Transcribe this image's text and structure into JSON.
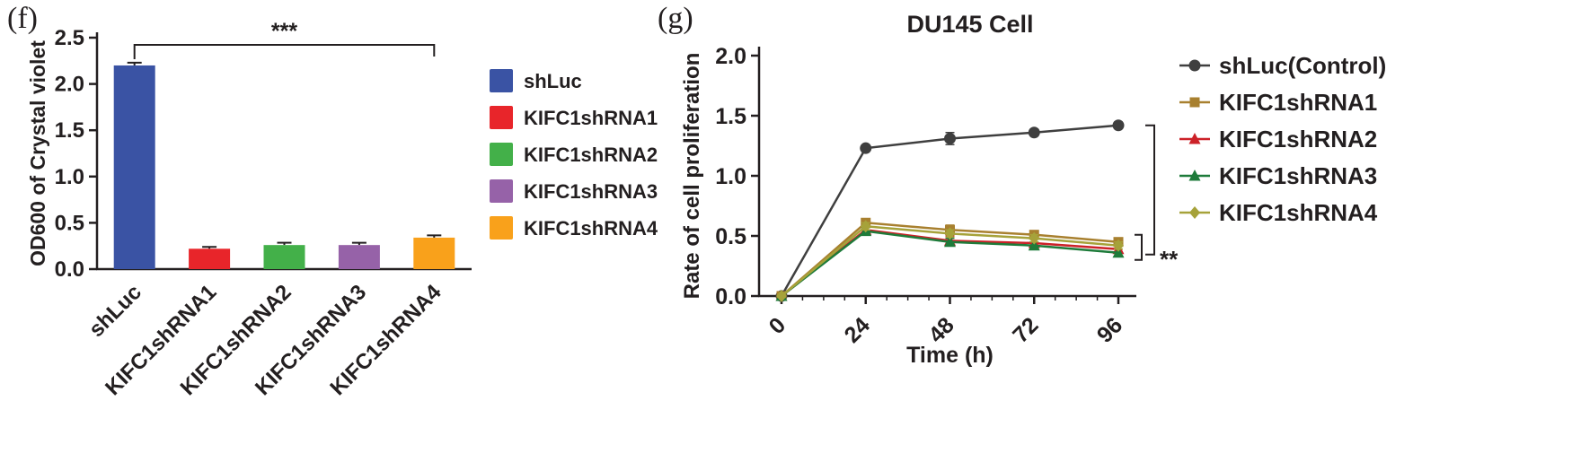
{
  "figure": {
    "panel_f_label": "(f)",
    "panel_g_label": "(g)"
  },
  "chart_data": [
    {
      "type": "bar",
      "panel": "f",
      "title": "",
      "xlabel": "",
      "ylabel": "OD600 of Crystal violet",
      "categories": [
        "shLuc",
        "KIFC1shRNA1",
        "KIFC1shRNA2",
        "KIFC1shRNA3",
        "KIFC1shRNA4"
      ],
      "values": [
        2.2,
        0.22,
        0.26,
        0.26,
        0.34
      ],
      "errors": [
        0.03,
        0.02,
        0.025,
        0.025,
        0.025
      ],
      "colors": [
        "#3a53a4",
        "#e8252a",
        "#43b049",
        "#9662a8",
        "#f9a11b"
      ],
      "ylim": [
        0,
        2.5
      ],
      "yticks": [
        0,
        0.5,
        1,
        1.5,
        2,
        2.5
      ],
      "grid": false,
      "legend_position": "right",
      "significance": {
        "label": "***",
        "from": "shLuc",
        "to": "KIFC1shRNA4",
        "from_index": 0,
        "to_index": 4
      },
      "axis_color": "#231f20"
    },
    {
      "type": "line",
      "panel": "g",
      "title": "DU145 Cell",
      "xlabel": "Time (h)",
      "ylabel": "Rate of cell proliferation",
      "x": [
        0,
        24,
        48,
        72,
        96
      ],
      "xticks": [
        0,
        24,
        48,
        72,
        96
      ],
      "xlim": [
        0,
        96
      ],
      "ylim": [
        0,
        2.0
      ],
      "yticks": [
        0,
        0.5,
        1,
        1.5,
        2
      ],
      "grid": false,
      "legend_position": "right",
      "series": [
        {
          "name": "shLuc(Control)",
          "marker": "circle",
          "color": "#3f3f3f",
          "values": [
            0,
            1.23,
            1.31,
            1.36,
            1.42
          ],
          "errors": [
            0,
            0.02,
            0.05,
            0.02,
            0.02
          ]
        },
        {
          "name": "KIFC1shRNA1",
          "marker": "square",
          "color": "#a8802f",
          "values": [
            0,
            0.61,
            0.55,
            0.51,
            0.45
          ],
          "errors": [
            0,
            0.03,
            0.04,
            0.03,
            0.03
          ]
        },
        {
          "name": "KIFC1shRNA2",
          "marker": "triangle",
          "color": "#cc2128",
          "values": [
            0,
            0.55,
            0.46,
            0.44,
            0.39
          ],
          "errors": [
            0,
            0.03,
            0.04,
            0.04,
            0.03
          ]
        },
        {
          "name": "KIFC1shRNA3",
          "marker": "triangle",
          "color": "#1e7b3a",
          "values": [
            0,
            0.54,
            0.45,
            0.42,
            0.36
          ],
          "errors": [
            0,
            0.03,
            0.03,
            0.03,
            0.03
          ]
        },
        {
          "name": "KIFC1shRNA4",
          "marker": "diamond",
          "color": "#a6a23a",
          "values": [
            0,
            0.58,
            0.52,
            0.48,
            0.42
          ],
          "errors": [
            0,
            0.03,
            0.03,
            0.03,
            0.03
          ]
        }
      ],
      "significance": {
        "label": "**"
      },
      "axis_color": "#231f20"
    }
  ]
}
